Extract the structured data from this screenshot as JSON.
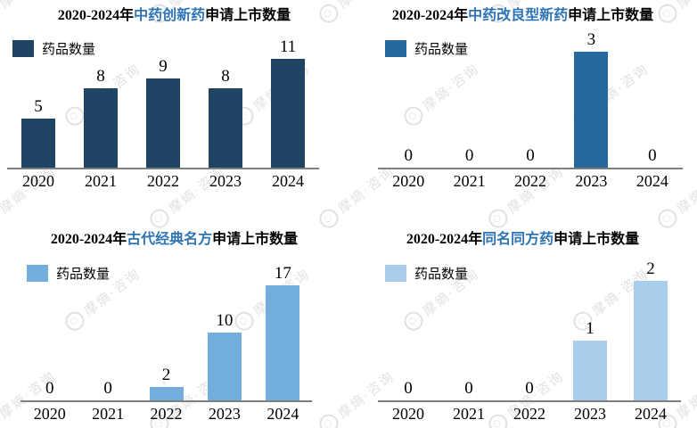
{
  "page": {
    "background": "#ffffff"
  },
  "watermark": {
    "text": "摩熵·咨询",
    "logo_glyph": "⬡",
    "color": "#e2e2e2"
  },
  "styles": {
    "title_highlight_color": "#2E74B5",
    "axis_color": "#7f7f7f",
    "text_color": "#000000"
  },
  "chart_data": [
    {
      "type": "bar",
      "title_full": "2020-2024年中药创新药申请上市数量",
      "title_prefix": "2020-2024年",
      "title_highlight": "中药创新药",
      "title_suffix": "申请上市数量",
      "legend_label": "药品数量",
      "bar_color": "#1F4464",
      "categories": [
        "2020",
        "2021",
        "2022",
        "2023",
        "2024"
      ],
      "values": [
        5,
        8,
        9,
        8,
        11
      ],
      "ylim": [
        0,
        11
      ],
      "grid": false,
      "legend_position": "top-left",
      "data_labels": true
    },
    {
      "type": "bar",
      "title_full": "2020-2024年中药改良型新药申请上市数量",
      "title_prefix": "2020-2024年",
      "title_highlight": "中药改良型新药",
      "title_suffix": "申请上市数量",
      "legend_label": "药品数量",
      "bar_color": "#24689E",
      "categories": [
        "2020",
        "2021",
        "2022",
        "2023",
        "2024"
      ],
      "values": [
        0,
        0,
        0,
        3,
        0
      ],
      "ylim": [
        0,
        3
      ],
      "grid": false,
      "legend_position": "top-left",
      "data_labels": true
    },
    {
      "type": "bar",
      "title_full": "2020-2024年古代经典名方申请上市数量",
      "title_prefix": "2020-2024年",
      "title_highlight": "古代经典名方",
      "title_suffix": "申请上市数量",
      "legend_label": "药品数量",
      "bar_color": "#73ADDC",
      "categories": [
        "2020",
        "2021",
        "2022",
        "2023",
        "2024"
      ],
      "values": [
        0,
        0,
        2,
        10,
        17
      ],
      "ylim": [
        0,
        17
      ],
      "grid": false,
      "legend_position": "top-left",
      "data_labels": true
    },
    {
      "type": "bar",
      "title_full": "2020-2024年同名同方药申请上市数量",
      "title_prefix": "2020-2024年",
      "title_highlight": "同名同方药",
      "title_suffix": "申请上市数量",
      "legend_label": "药品数量",
      "bar_color": "#A9CDEA",
      "categories": [
        "2020",
        "2021",
        "2022",
        "2023",
        "2024"
      ],
      "values": [
        0,
        0,
        0,
        1,
        2
      ],
      "ylim": [
        0,
        2
      ],
      "grid": false,
      "legend_position": "top-left",
      "data_labels": true
    }
  ]
}
